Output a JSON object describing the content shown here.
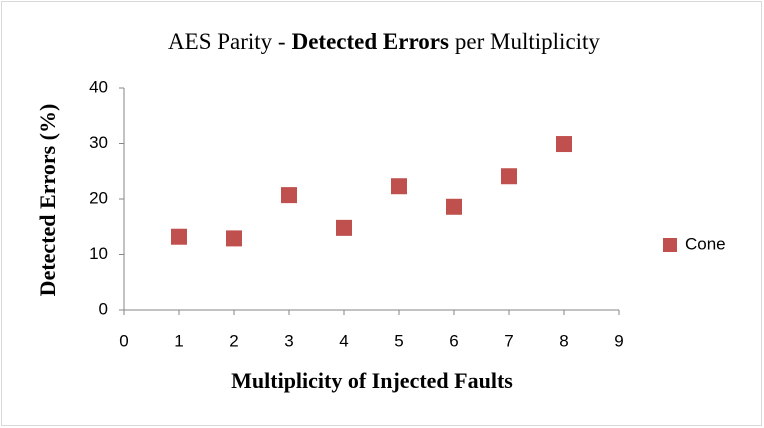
{
  "chart_data": {
    "type": "scatter",
    "title": [
      "AES Parity -",
      "Detected Errors",
      "per Multiplicity"
    ],
    "xlabel": "Multiplicity  of Injected Faults",
    "ylabel": "Detected Errors  (%)",
    "series": [
      {
        "name": "Cone",
        "color": "#c0504d",
        "x": [
          1,
          2,
          3,
          4,
          5,
          6,
          7,
          8
        ],
        "values": [
          13.2,
          12.9,
          20.7,
          14.8,
          22.3,
          18.6,
          24.1,
          29.9
        ]
      }
    ],
    "xlim": [
      0,
      9
    ],
    "xticks": [
      0,
      1,
      2,
      3,
      4,
      5,
      6,
      7,
      8,
      9
    ],
    "ylim": [
      0,
      40
    ],
    "yticks": [
      0,
      10,
      20,
      30,
      40
    ],
    "grid": false,
    "legend": "right"
  }
}
